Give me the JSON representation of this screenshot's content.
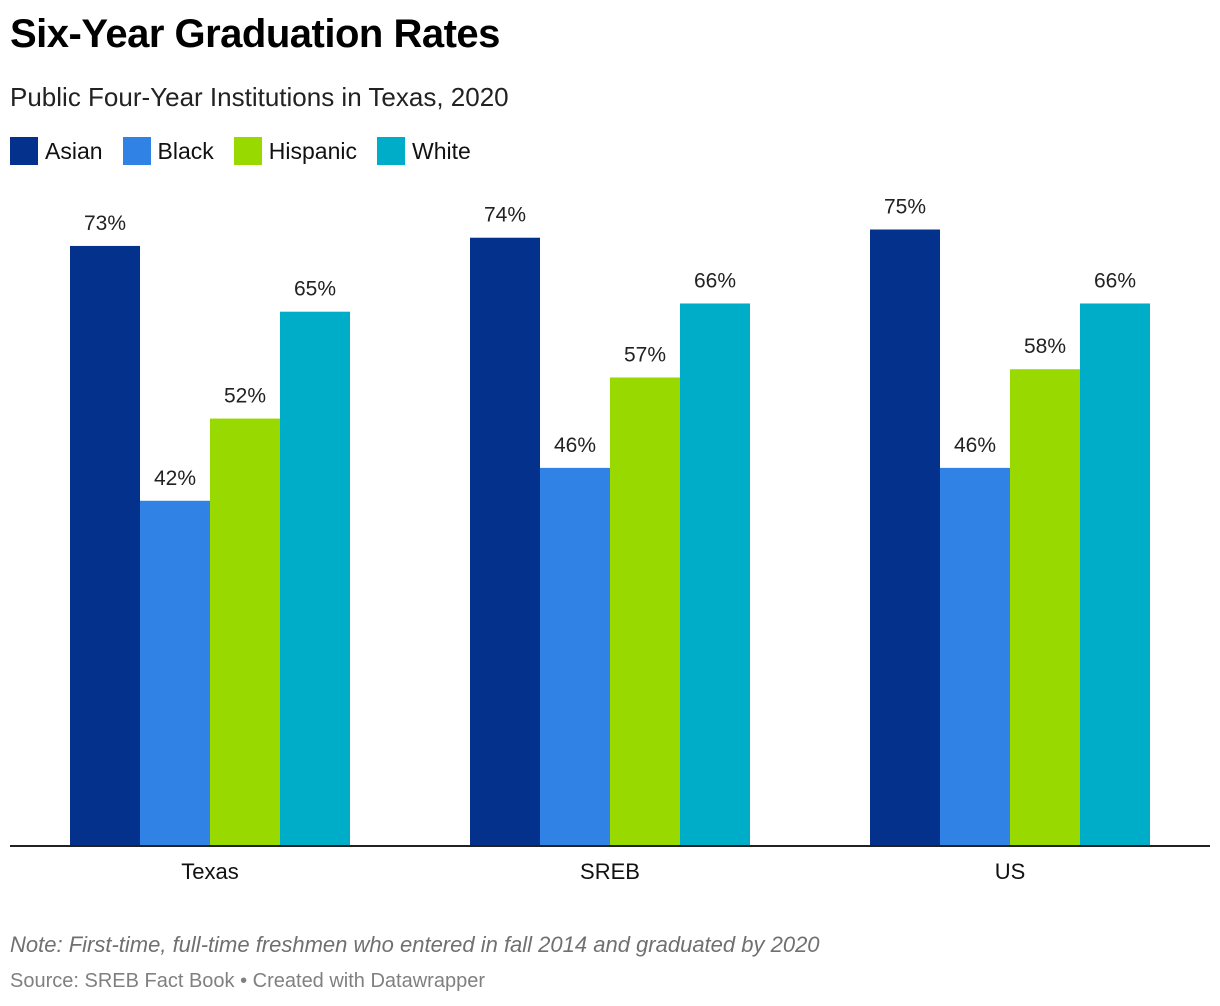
{
  "header": {
    "title": "Six-Year Graduation Rates",
    "subtitle": "Public Four-Year Institutions in Texas, 2020"
  },
  "footer": {
    "note": "Note: First-time, full-time freshmen who entered in fall 2014 and graduated by 2020",
    "source": "Source: SREB Fact Book • Created with Datawrapper"
  },
  "chart_data": {
    "type": "bar",
    "title": "Six-Year Graduation Rates",
    "subtitle": "Public Four-Year Institutions in Texas, 2020",
    "categories": [
      "Texas",
      "SREB",
      "US"
    ],
    "series": [
      {
        "name": "Asian",
        "color": "#04318b",
        "values": [
          73,
          74,
          75
        ]
      },
      {
        "name": "Black",
        "color": "#3083e5",
        "values": [
          42,
          46,
          46
        ]
      },
      {
        "name": "Hispanic",
        "color": "#98d900",
        "values": [
          52,
          57,
          58
        ]
      },
      {
        "name": "White",
        "color": "#00adc8",
        "values": [
          65,
          66,
          66
        ]
      }
    ],
    "value_suffix": "%",
    "ylim": [
      0,
      80
    ],
    "grid": false,
    "legend_position": "top-left"
  }
}
